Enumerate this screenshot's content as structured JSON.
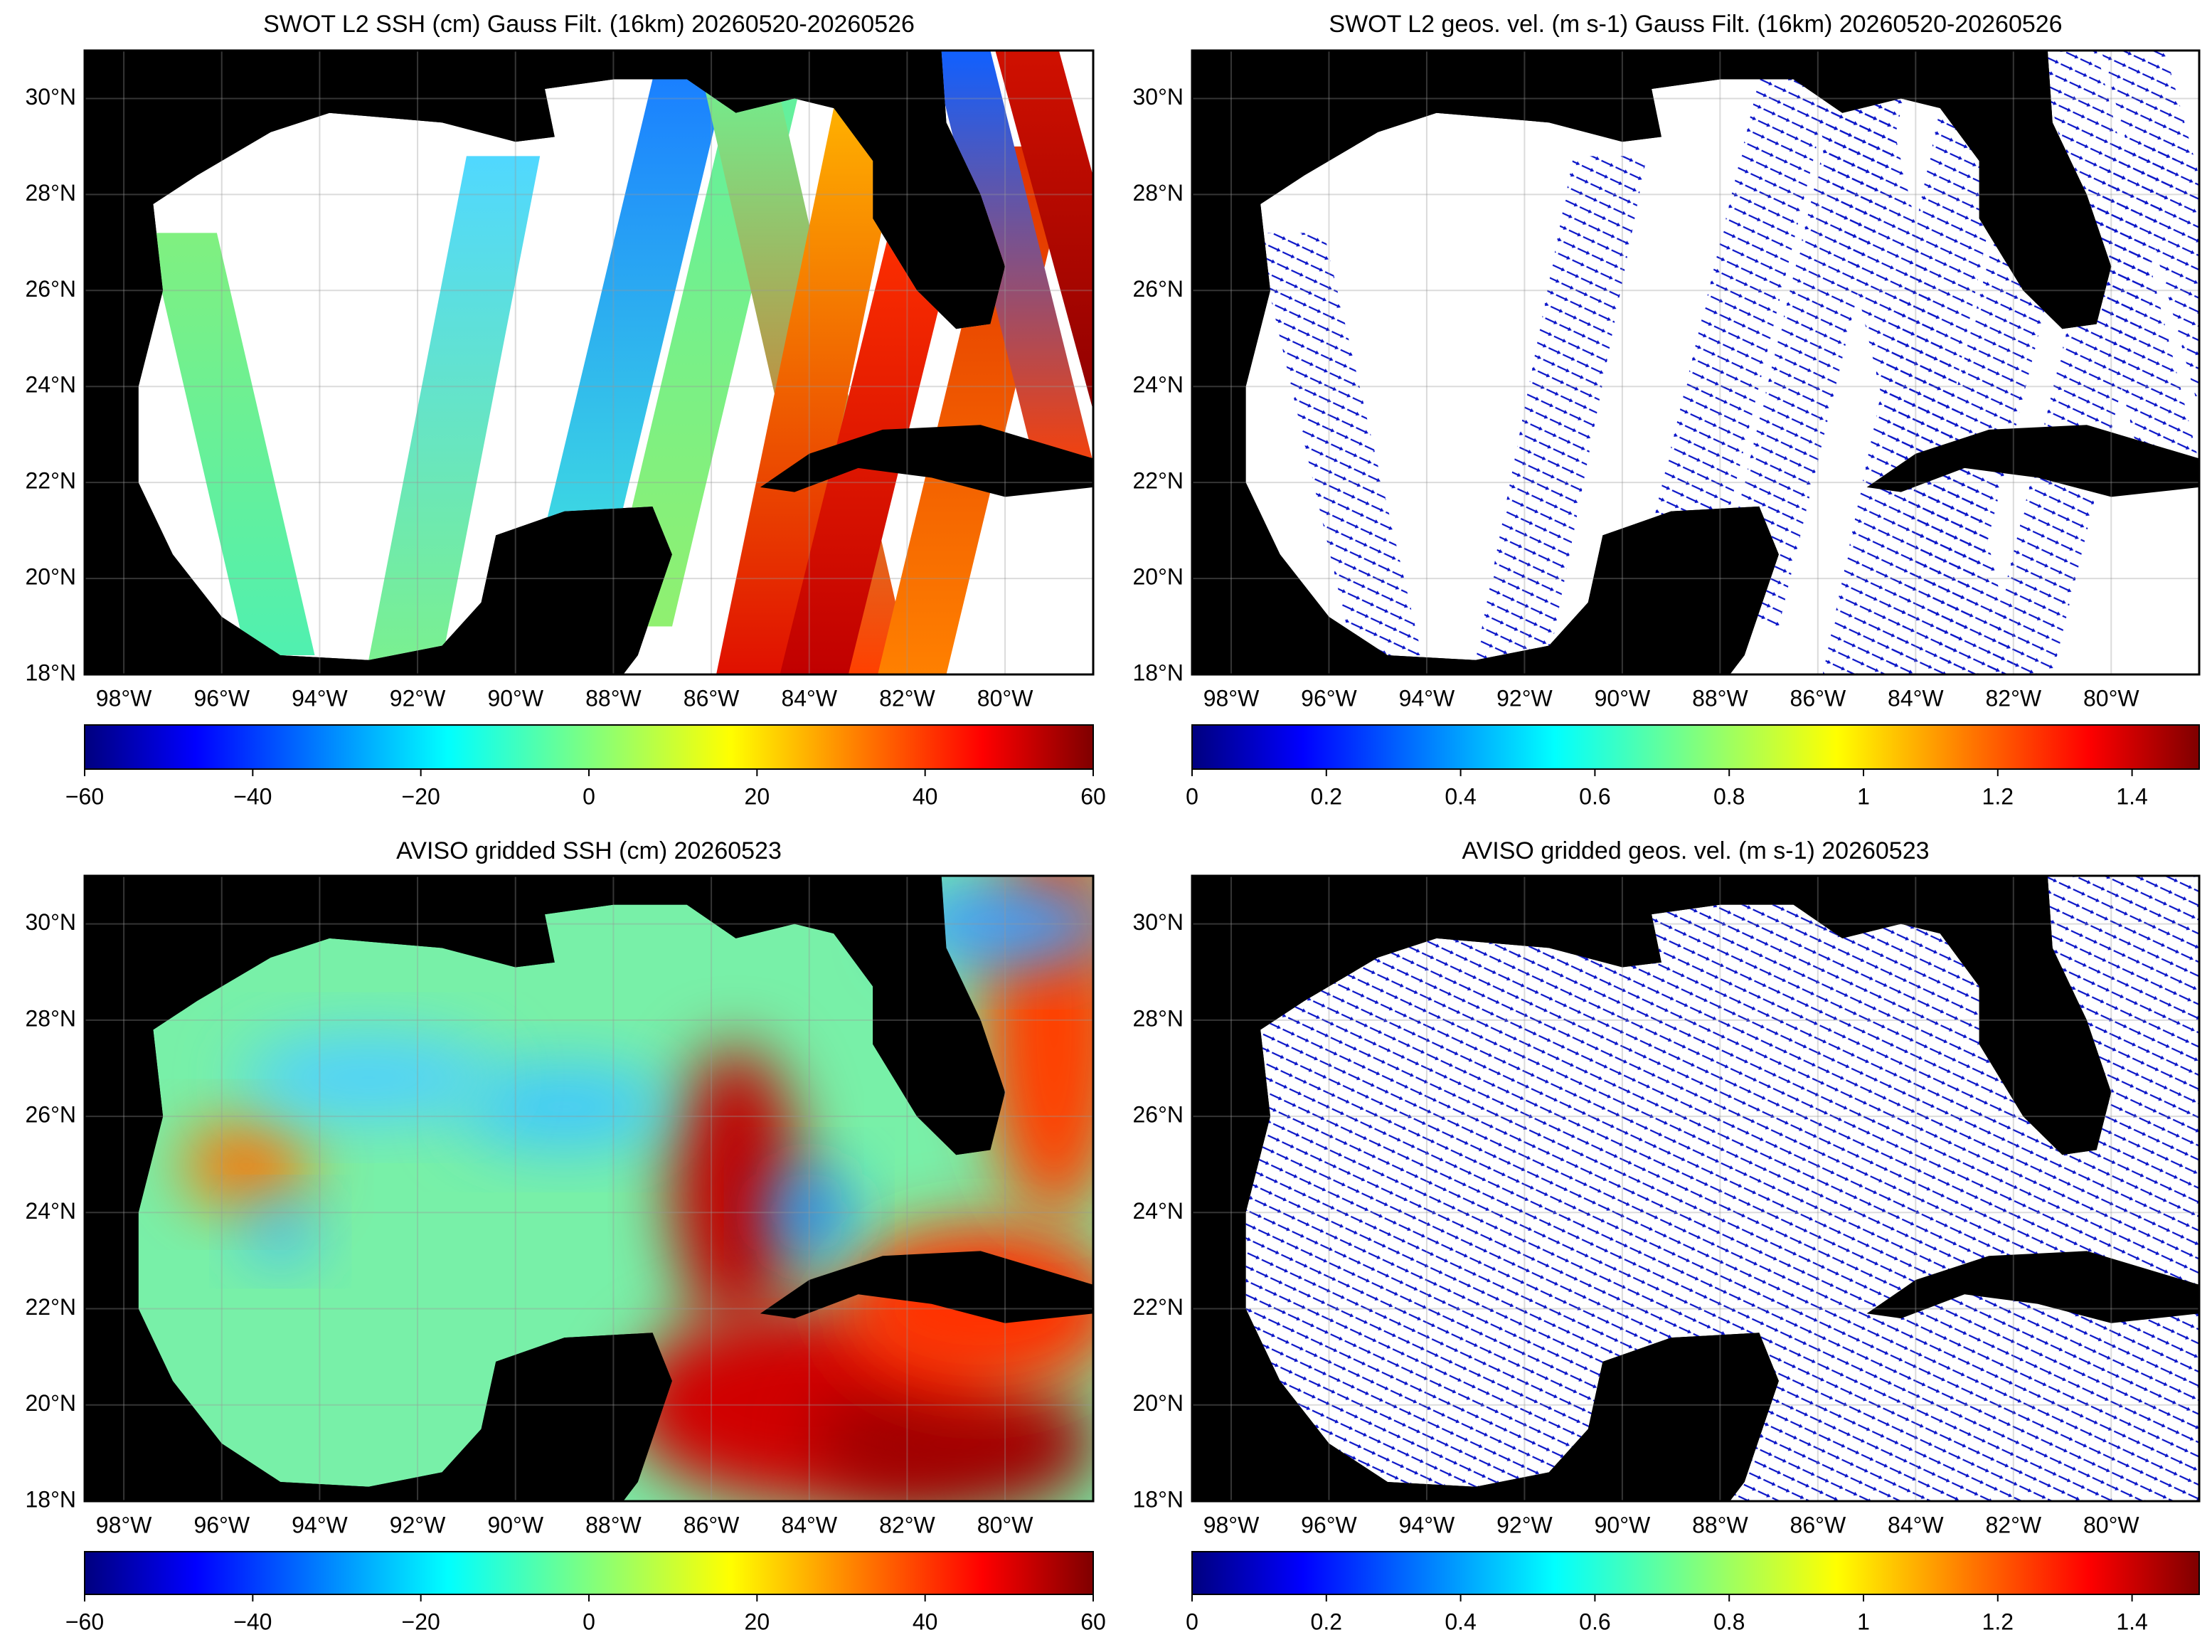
{
  "panels": [
    {
      "title": "SWOT L2 SSH (cm) Gauss Filt. (16km) 20260520-20260526",
      "lon_lim": [
        -98.8,
        -78.2
      ],
      "lat_lim": [
        18,
        31
      ],
      "lon_ticks": [
        {
          "value": -98,
          "label": "98°W"
        },
        {
          "value": -96,
          "label": "96°W"
        },
        {
          "value": -94,
          "label": "94°W"
        },
        {
          "value": -92,
          "label": "92°W"
        },
        {
          "value": -90,
          "label": "90°W"
        },
        {
          "value": -88,
          "label": "88°W"
        },
        {
          "value": -86,
          "label": "86°W"
        },
        {
          "value": -84,
          "label": "84°W"
        },
        {
          "value": -82,
          "label": "82°W"
        },
        {
          "value": -80,
          "label": "80°W"
        }
      ],
      "lat_ticks": [
        {
          "value": 18,
          "label": "18°N"
        },
        {
          "value": 20,
          "label": "20°N"
        },
        {
          "value": 22,
          "label": "22°N"
        },
        {
          "value": 24,
          "label": "24°N"
        },
        {
          "value": 26,
          "label": "26°N"
        },
        {
          "value": 28,
          "label": "28°N"
        },
        {
          "value": 30,
          "label": "30°N"
        }
      ],
      "colorbar": {
        "lim": [
          -60,
          60
        ],
        "ticks": [
          {
            "value": -60,
            "label": "−60"
          },
          {
            "value": -40,
            "label": "−40"
          },
          {
            "value": -20,
            "label": "−20"
          },
          0,
          20,
          40,
          60
        ]
      }
    },
    {
      "title": "SWOT L2 geos. vel. (m s-1) Gauss Filt. (16km) 20260520-20260526",
      "lon_lim": [
        -98.8,
        -78.2
      ],
      "lat_lim": [
        18,
        31
      ],
      "lon_ticks": [
        {
          "value": -98,
          "label": "98°W"
        },
        {
          "value": -96,
          "label": "96°W"
        },
        {
          "value": -94,
          "label": "94°W"
        },
        {
          "value": -92,
          "label": "92°W"
        },
        {
          "value": -90,
          "label": "90°W"
        },
        {
          "value": -88,
          "label": "88°W"
        },
        {
          "value": -86,
          "label": "86°W"
        },
        {
          "value": -84,
          "label": "84°W"
        },
        {
          "value": -82,
          "label": "82°W"
        },
        {
          "value": -80,
          "label": "80°W"
        }
      ],
      "lat_ticks": [
        {
          "value": 18,
          "label": "18°N"
        },
        {
          "value": 20,
          "label": "20°N"
        },
        {
          "value": 22,
          "label": "22°N"
        },
        {
          "value": 24,
          "label": "24°N"
        },
        {
          "value": 26,
          "label": "26°N"
        },
        {
          "value": 28,
          "label": "28°N"
        },
        {
          "value": 30,
          "label": "30°N"
        }
      ],
      "colorbar": {
        "lim": [
          0,
          1.5
        ],
        "ticks": [
          0,
          0.2,
          0.4,
          0.6,
          0.8,
          1,
          1.2,
          1.4
        ]
      }
    },
    {
      "title": "AVISO gridded SSH (cm) 20260523",
      "lon_lim": [
        -98.8,
        -78.2
      ],
      "lat_lim": [
        18,
        31
      ],
      "lon_ticks": [
        {
          "value": -98,
          "label": "98°W"
        },
        {
          "value": -96,
          "label": "96°W"
        },
        {
          "value": -94,
          "label": "94°W"
        },
        {
          "value": -92,
          "label": "92°W"
        },
        {
          "value": -90,
          "label": "90°W"
        },
        {
          "value": -88,
          "label": "88°W"
        },
        {
          "value": -86,
          "label": "86°W"
        },
        {
          "value": -84,
          "label": "84°W"
        },
        {
          "value": -82,
          "label": "82°W"
        },
        {
          "value": -80,
          "label": "80°W"
        }
      ],
      "lat_ticks": [
        {
          "value": 18,
          "label": "18°N"
        },
        {
          "value": 20,
          "label": "20°N"
        },
        {
          "value": 22,
          "label": "22°N"
        },
        {
          "value": 24,
          "label": "24°N"
        },
        {
          "value": 26,
          "label": "26°N"
        },
        {
          "value": 28,
          "label": "28°N"
        },
        {
          "value": 30,
          "label": "30°N"
        }
      ],
      "colorbar": {
        "lim": [
          -60,
          60
        ],
        "ticks": [
          {
            "value": -60,
            "label": "−60"
          },
          {
            "value": -40,
            "label": "−40"
          },
          {
            "value": -20,
            "label": "−20"
          },
          0,
          20,
          40,
          60
        ]
      }
    },
    {
      "title": "AVISO gridded geos. vel. (m s-1)  20260523",
      "lon_lim": [
        -98.8,
        -78.2
      ],
      "lat_lim": [
        18,
        31
      ],
      "lon_ticks": [
        {
          "value": -98,
          "label": "98°W"
        },
        {
          "value": -96,
          "label": "96°W"
        },
        {
          "value": -94,
          "label": "94°W"
        },
        {
          "value": -92,
          "label": "92°W"
        },
        {
          "value": -90,
          "label": "90°W"
        },
        {
          "value": -88,
          "label": "88°W"
        },
        {
          "value": -86,
          "label": "86°W"
        },
        {
          "value": -84,
          "label": "84°W"
        },
        {
          "value": -82,
          "label": "82°W"
        },
        {
          "value": -80,
          "label": "80°W"
        }
      ],
      "lat_ticks": [
        {
          "value": 18,
          "label": "18°N"
        },
        {
          "value": 20,
          "label": "20°N"
        },
        {
          "value": 22,
          "label": "22°N"
        },
        {
          "value": 24,
          "label": "24°N"
        },
        {
          "value": 26,
          "label": "26°N"
        },
        {
          "value": 28,
          "label": "28°N"
        },
        {
          "value": 30,
          "label": "30°N"
        }
      ],
      "colorbar": {
        "lim": [
          0,
          1.5
        ],
        "ticks": [
          0,
          0.2,
          0.4,
          0.6,
          0.8,
          1,
          1.2,
          1.4
        ]
      }
    }
  ]
}
